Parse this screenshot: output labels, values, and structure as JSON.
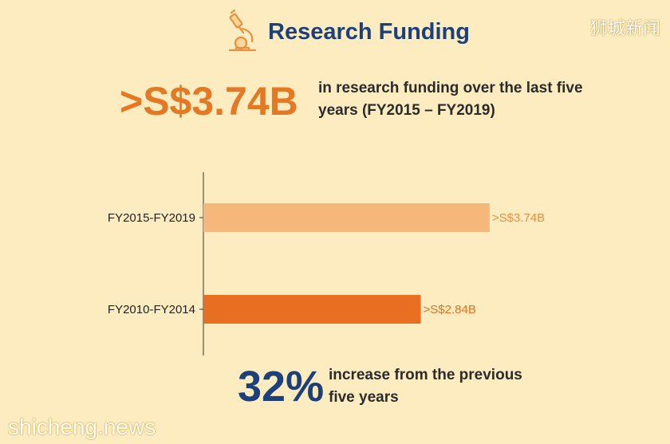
{
  "header": {
    "title": "Research Funding",
    "icon": "microscope-icon"
  },
  "watermark_top": "狮城新闻",
  "headline": {
    "value": ">S$3.74B",
    "description": "in research funding over the last five years (FY2015 – FY2019)"
  },
  "increase": {
    "value": "32%",
    "description": "increase from the previous five years"
  },
  "watermark_bottom": "shicheng.news",
  "colors": {
    "light_bar": "#f5b87a",
    "dark_bar": "#e86f22",
    "title": "#1d3f7a",
    "accent": "#e47823"
  },
  "chart_data": {
    "type": "bar",
    "orientation": "horizontal",
    "categories": [
      "FY2015-FY2019",
      "FY2010-FY2014"
    ],
    "values": [
      3.74,
      2.84
    ],
    "data_labels": [
      ">S$3.74B",
      ">S$2.84B"
    ],
    "bar_colors": [
      "#f5b87a",
      "#e86f22"
    ],
    "label_colors": [
      "#e8903f",
      "#e86f22"
    ],
    "xlim": [
      0,
      4.95
    ],
    "grid": false
  }
}
